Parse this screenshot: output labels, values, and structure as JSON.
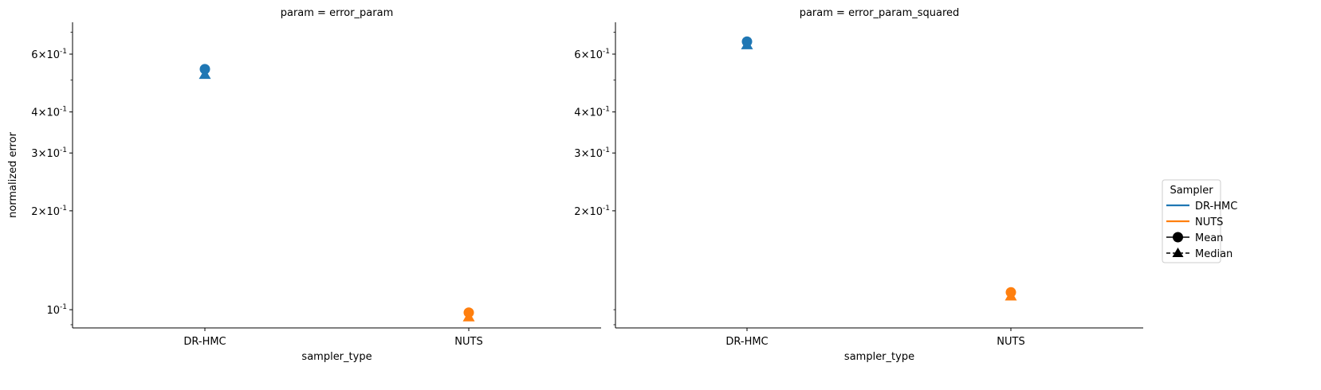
{
  "chart_data": [
    {
      "type": "scatter",
      "title": "param = error_param",
      "xlabel": "sampler_type",
      "ylabel": "normalized error",
      "y_scale": "log",
      "ylim": [
        0.088,
        0.75
      ],
      "categories": [
        "DR-HMC",
        "NUTS"
      ],
      "y_ticks": [
        {
          "value": 0.1,
          "label": "10^{-1}"
        },
        {
          "value": 0.2,
          "label": "2×10^{-1}"
        },
        {
          "value": 0.3,
          "label": "3×10^{-1}"
        },
        {
          "value": 0.4,
          "label": "4×10^{-1}"
        },
        {
          "value": 0.6,
          "label": "6×10^{-1}"
        }
      ],
      "series": [
        {
          "name": "DR-HMC",
          "color": "#1f77b4",
          "mean": 0.54,
          "median": 0.52
        },
        {
          "name": "NUTS",
          "color": "#ff7f0e",
          "mean": 0.098,
          "median": 0.095
        }
      ],
      "grid": false
    },
    {
      "type": "scatter",
      "title": "param = error_param_squared",
      "xlabel": "sampler_type",
      "ylabel": "",
      "y_scale": "log",
      "ylim": [
        0.088,
        0.75
      ],
      "categories": [
        "DR-HMC",
        "NUTS"
      ],
      "y_ticks": [
        {
          "value": 0.2,
          "label": "2×10^{-1}"
        },
        {
          "value": 0.3,
          "label": "3×10^{-1}"
        },
        {
          "value": 0.4,
          "label": "4×10^{-1}"
        },
        {
          "value": 0.6,
          "label": "6×10^{-1}"
        }
      ],
      "series": [
        {
          "name": "DR-HMC",
          "color": "#1f77b4",
          "mean": 0.655,
          "median": 0.64
        },
        {
          "name": "NUTS",
          "color": "#ff7f0e",
          "mean": 0.113,
          "median": 0.11
        }
      ],
      "grid": false
    }
  ],
  "legend": {
    "title": "Sampler",
    "placement": "right",
    "entries": [
      {
        "label": "DR-HMC",
        "kind": "line",
        "color": "#1f77b4"
      },
      {
        "label": "NUTS",
        "kind": "line",
        "color": "#ff7f0e"
      },
      {
        "label": "Mean",
        "kind": "circle",
        "color": "#000000"
      },
      {
        "label": "Median",
        "kind": "triangle",
        "color": "#000000"
      }
    ]
  }
}
